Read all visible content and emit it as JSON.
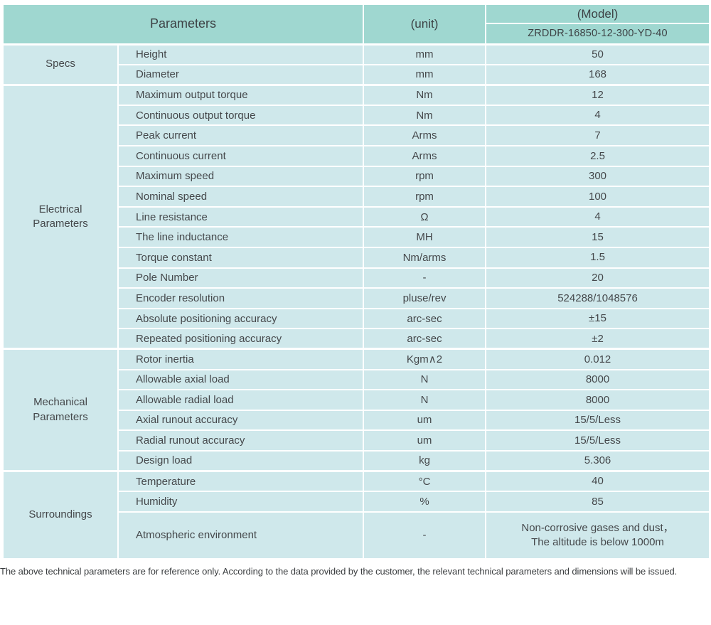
{
  "header": {
    "parameters_label": "Parameters",
    "unit_label": "(unit)",
    "model_label": "(Model)",
    "model_value": "ZRDDR-16850-12-300-YD-40"
  },
  "groups": [
    {
      "name": "Specs",
      "rows": [
        {
          "param": "Height",
          "unit": "mm",
          "value": "50"
        },
        {
          "param": "Diameter",
          "unit": "mm",
          "value": "168"
        }
      ]
    },
    {
      "name": "Electrical Parameters",
      "rows": [
        {
          "param": "Maximum output torque",
          "unit": "Nm",
          "value": "12"
        },
        {
          "param": "Continuous output torque",
          "unit": "Nm",
          "value": "4"
        },
        {
          "param": "Peak current",
          "unit": "Arms",
          "value": "7"
        },
        {
          "param": "Continuous current",
          "unit": "Arms",
          "value": "2.5"
        },
        {
          "param": "Maximum speed",
          "unit": "rpm",
          "value": "300"
        },
        {
          "param": "Nominal speed",
          "unit": "rpm",
          "value": "100"
        },
        {
          "param": "Line resistance",
          "unit": "Ω",
          "value": "4"
        },
        {
          "param": "The line inductance",
          "unit": "MH",
          "value": "15"
        },
        {
          "param": "Torque constant",
          "unit": "Nm/arms",
          "value": "1.5"
        },
        {
          "param": "Pole Number",
          "unit": "-",
          "value": "20"
        },
        {
          "param": "Encoder resolution",
          "unit": "pluse/rev",
          "value": "524288/1048576"
        },
        {
          "param": "Absolute positioning accuracy",
          "unit": "arc-sec",
          "value": "±15"
        },
        {
          "param": "Repeated positioning accuracy",
          "unit": "arc-sec",
          "value": "±2"
        }
      ]
    },
    {
      "name": "Mechanical Parameters",
      "rows": [
        {
          "param": "Rotor inertia",
          "unit": "Kgm∧2",
          "value": "0.012"
        },
        {
          "param": "Allowable axial load",
          "unit": "N",
          "value": "8000"
        },
        {
          "param": "Allowable radial load",
          "unit": "N",
          "value": "8000"
        },
        {
          "param": "Axial runout accuracy",
          "unit": "um",
          "value": "15/5/Less"
        },
        {
          "param": "Radial runout accuracy",
          "unit": "um",
          "value": "15/5/Less"
        },
        {
          "param": "Design load",
          "unit": "kg",
          "value": "5.306"
        }
      ]
    },
    {
      "name": "Surroundings",
      "rows": [
        {
          "param": "Temperature",
          "unit": "°C",
          "value": "40"
        },
        {
          "param": "Humidity",
          "unit": "%",
          "value": "85"
        },
        {
          "param": "Atmospheric environment",
          "unit": "-",
          "value": "Non-corrosive gases and dust，\nThe altitude is below 1000m",
          "tall": true
        }
      ]
    }
  ],
  "footer_note": "The above technical parameters are for reference only. According to the data provided by the customer, the relevant technical parameters and dimensions will be issued.",
  "colors": {
    "header_bg": "#9fd7d0",
    "row_bg": "#cfe8eb",
    "border": "#ffffff",
    "text": "#45484b"
  }
}
